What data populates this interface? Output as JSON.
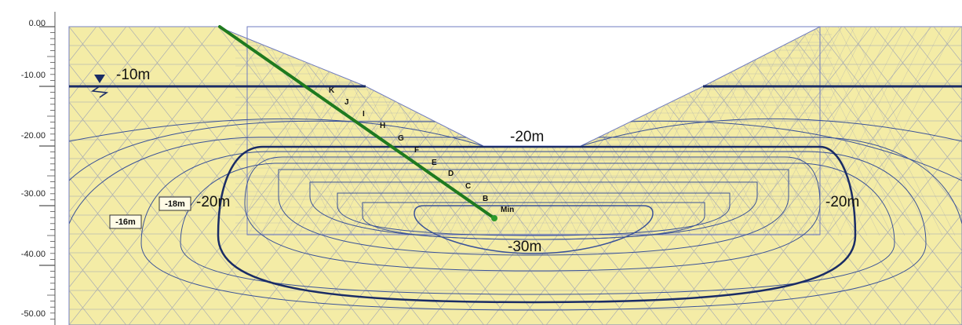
{
  "axis": {
    "unit": "m",
    "ticks": [
      "0.00",
      "-10.00",
      "-20.00",
      "-30.00",
      "-40.00",
      "-50.00"
    ]
  },
  "water_table": {
    "label": "-10m",
    "icon": "water-table-triangle-icon"
  },
  "contour_labels": {
    "excavation_base": "-20m",
    "left": "-20m",
    "right": "-20m",
    "bottom": "-30m"
  },
  "boxed_labels": [
    "-18m",
    "-16m"
  ],
  "section_line": {
    "points": [
      "K",
      "J",
      "I",
      "H",
      "G",
      "F",
      "E",
      "D",
      "C",
      "B",
      "Min"
    ]
  },
  "colors": {
    "soil": "#f4eca6",
    "mesh": "#9ea3b4",
    "contour": "#3a5298",
    "boundary_contour": "#1a2c66",
    "water_line": "#1a2c66",
    "section_line": "#1f7a1f"
  }
}
